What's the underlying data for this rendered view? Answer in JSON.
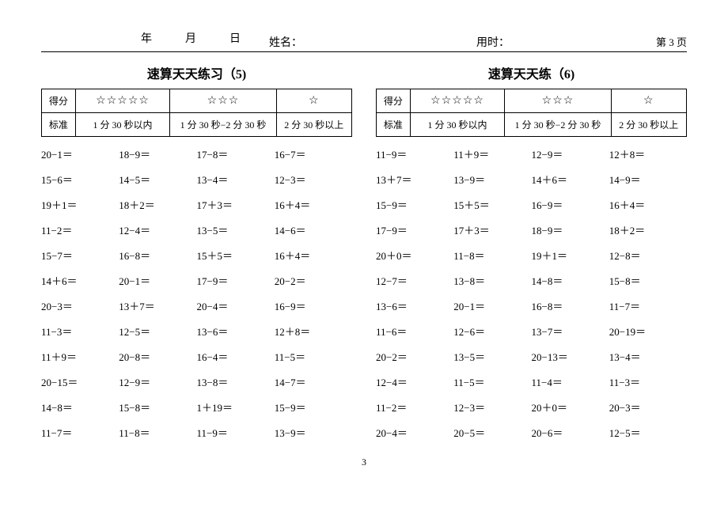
{
  "header": {
    "year": "年",
    "month": "月",
    "day": "日",
    "name_label": "姓名：",
    "time_label": "用时：",
    "page_label": "第 3 页"
  },
  "footer": {
    "page": "3"
  },
  "left": {
    "title": "速算天天练习（5)",
    "score": {
      "row1_label": "得分",
      "stars5": "☆☆☆☆☆",
      "stars3": "☆☆☆",
      "stars1": "☆",
      "row2_label": "标准",
      "t1": "1 分 30 秒以内",
      "t2": "1 分 30 秒−2 分 30 秒",
      "t3": "2 分 30 秒以上"
    },
    "problems": [
      [
        "20−1＝",
        "18−9＝",
        "17−8＝",
        "16−7＝"
      ],
      [
        "15−6＝",
        "14−5＝",
        "13−4＝",
        "12−3＝"
      ],
      [
        "19＋1＝",
        "18＋2＝",
        "17＋3＝",
        "16＋4＝"
      ],
      [
        "11−2＝",
        "12−4＝",
        "13−5＝",
        "14−6＝"
      ],
      [
        "15−7＝",
        "16−8＝",
        "15＋5＝",
        "16＋4＝"
      ],
      [
        "14＋6＝",
        "20−1＝",
        "17−9＝",
        "20−2＝"
      ],
      [
        "20−3＝",
        "13＋7＝",
        "20−4＝",
        "16−9＝"
      ],
      [
        "11−3＝",
        "12−5＝",
        "13−6＝",
        "12＋8＝"
      ],
      [
        "11＋9＝",
        "20−8＝",
        "16−4＝",
        "11−5＝"
      ],
      [
        "20−15＝",
        "12−9＝",
        "13−8＝",
        "14−7＝"
      ],
      [
        "14−8＝",
        "15−8＝",
        "1＋19＝",
        "15−9＝"
      ],
      [
        "11−7＝",
        "11−8＝",
        "11−9＝",
        "13−9＝"
      ]
    ]
  },
  "right": {
    "title": "速算天天练（6)",
    "score": {
      "row1_label": "得分",
      "stars5": "☆☆☆☆☆",
      "stars3": "☆☆☆",
      "stars1": "☆",
      "row2_label": "标准",
      "t1": "1 分 30 秒以内",
      "t2": "1 分 30 秒−2 分 30 秒",
      "t3": "2 分 30 秒以上"
    },
    "problems": [
      [
        "11−9＝",
        "11＋9＝",
        "12−9＝",
        "12＋8＝"
      ],
      [
        "13＋7＝",
        "13−9＝",
        "14＋6＝",
        "14−9＝"
      ],
      [
        "15−9＝",
        "15＋5＝",
        "16−9＝",
        "16＋4＝"
      ],
      [
        "17−9＝",
        "17＋3＝",
        "18−9＝",
        "18＋2＝"
      ],
      [
        "20＋0＝",
        "11−8＝",
        "19＋1＝",
        "12−8＝"
      ],
      [
        "12−7＝",
        "13−8＝",
        "14−8＝",
        "15−8＝"
      ],
      [
        "13−6＝",
        "20−1＝",
        "16−8＝",
        "11−7＝"
      ],
      [
        "11−6＝",
        "12−6＝",
        "13−7＝",
        "20−19＝"
      ],
      [
        "20−2＝",
        "13−5＝",
        "20−13＝",
        "13−4＝"
      ],
      [
        "12−4＝",
        "11−5＝",
        "11−4＝",
        "11−3＝"
      ],
      [
        "11−2＝",
        "12−3＝",
        "20＋0＝",
        "20−3＝"
      ],
      [
        "20−4＝",
        "20−5＝",
        "20−6＝",
        "12−5＝"
      ]
    ]
  }
}
